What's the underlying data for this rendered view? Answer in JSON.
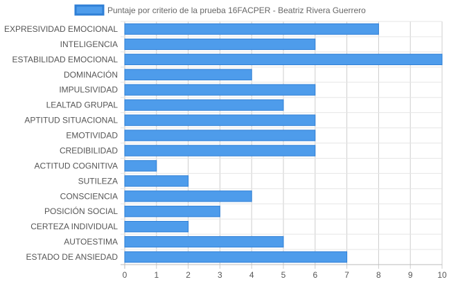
{
  "chart_data": {
    "type": "bar",
    "orientation": "horizontal",
    "legend": {
      "label": "Puntaje por criterio de la prueba 16FACPER - Beatriz Rivera Guerrero",
      "position": "top-center"
    },
    "categories": [
      "EXPRESIVIDAD EMOCIONAL",
      "INTELIGENCIA",
      "ESTABILIDAD EMOCIONAL",
      "DOMINACIÓN",
      "IMPULSIVIDAD",
      "LEALTAD GRUPAL",
      "APTITUD SITUACIONAL",
      "EMOTIVIDAD",
      "CREDIBILIDAD",
      "ACTITUD COGNITIVA",
      "SUTILEZA",
      "CONSCIENCIA",
      "POSICIÓN SOCIAL",
      "CERTEZA INDIVIDUAL",
      "AUTOESTIMA",
      "ESTADO DE ANSIEDAD"
    ],
    "values": [
      8,
      6,
      10,
      4,
      6,
      5,
      6,
      6,
      6,
      1,
      2,
      4,
      3,
      2,
      5,
      7
    ],
    "xlim": [
      0,
      10
    ],
    "x_ticks": [
      "0",
      "1",
      "2",
      "3",
      "4",
      "5",
      "6",
      "7",
      "8",
      "9",
      "10"
    ],
    "grid": true,
    "bar_color": "#4e9ceb",
    "bar_border_color": "#2f7fd6"
  }
}
